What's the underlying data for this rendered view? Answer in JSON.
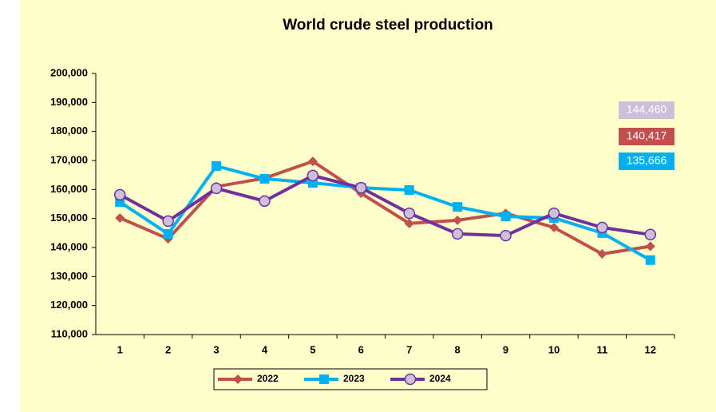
{
  "chart_data": {
    "type": "line",
    "title": "World crude steel production",
    "categories": [
      "1",
      "2",
      "3",
      "4",
      "5",
      "6",
      "7",
      "8",
      "9",
      "10",
      "11",
      "12"
    ],
    "series": [
      {
        "name": "2022",
        "color": "#c0504d",
        "marker": "diamond",
        "values": [
          150200,
          143000,
          161000,
          163900,
          169700,
          158700,
          148300,
          149400,
          151800,
          146900,
          137800,
          140417
        ],
        "end_label": "140,417"
      },
      {
        "name": "2023",
        "color": "#00b0f0",
        "marker": "square",
        "values": [
          155700,
          144700,
          168100,
          163700,
          162300,
          160600,
          159800,
          154000,
          150700,
          150200,
          145000,
          135666
        ],
        "end_label": "135,666"
      },
      {
        "name": "2024",
        "color": "#7030a0",
        "marker": "circle",
        "marker_fill": "#ccc0da",
        "values": [
          158200,
          149100,
          160400,
          156000,
          164800,
          160600,
          151800,
          144700,
          144100,
          151800,
          146900,
          144460
        ],
        "end_label": "144,460",
        "end_label_color": "#ccc0da"
      }
    ],
    "ylim": [
      110000,
      200000
    ],
    "yticks": [
      {
        "value": 110000,
        "label": "110,000"
      },
      {
        "value": 120000,
        "label": "120,000"
      },
      {
        "value": 130000,
        "label": "130,000"
      },
      {
        "value": 140000,
        "label": "140,000"
      },
      {
        "value": 150000,
        "label": "150,000"
      },
      {
        "value": 160000,
        "label": "160,000"
      },
      {
        "value": 170000,
        "label": "170,000"
      },
      {
        "value": 180000,
        "label": "180,000"
      },
      {
        "value": 190000,
        "label": "190,000"
      },
      {
        "value": 200000,
        "label": "200,000"
      }
    ],
    "grid": false,
    "legend": "bottom"
  }
}
